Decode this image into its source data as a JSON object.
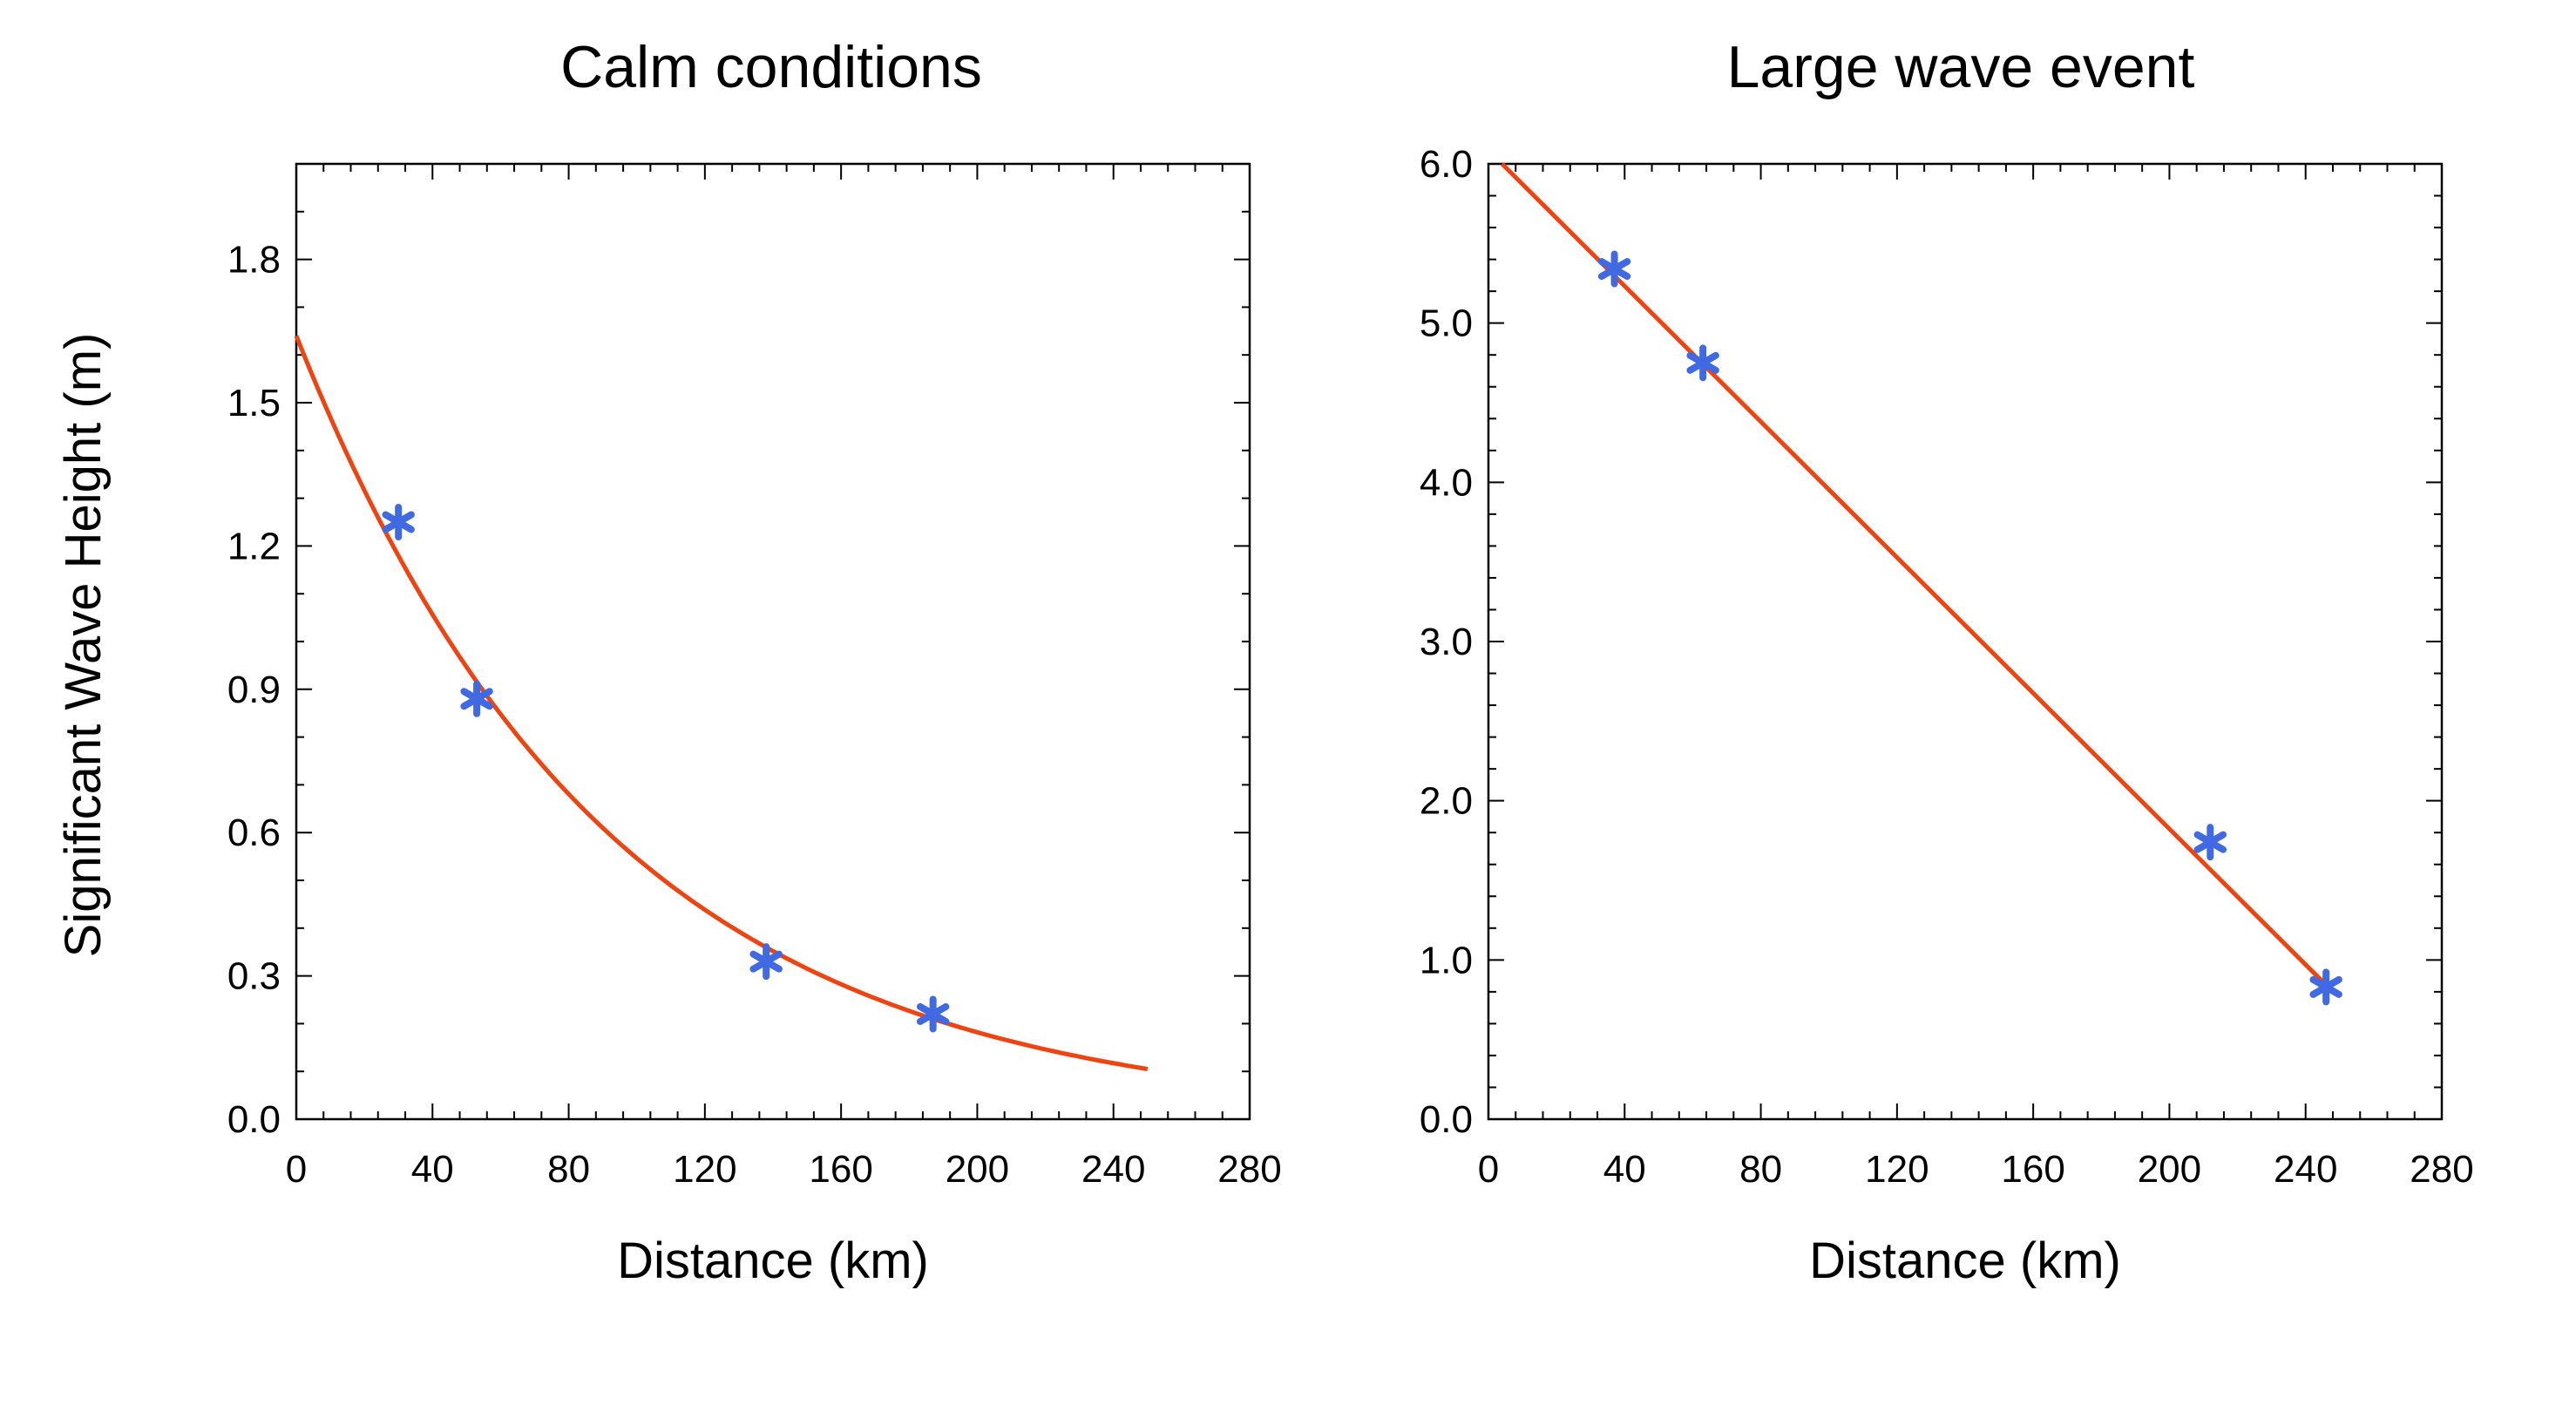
{
  "figure": {
    "colors": {
      "fit_line": "#ee4411",
      "markers": "#4169e1",
      "axes": "#000000"
    }
  },
  "chart_data": [
    {
      "type": "scatter",
      "title": "Calm conditions",
      "xlabel": "Distance (km)",
      "ylabel": "Significant Wave Height (m)",
      "xlim": [
        0,
        280
      ],
      "ylim": [
        0,
        2.0
      ],
      "xticks": [
        0,
        40,
        80,
        120,
        160,
        200,
        240,
        280
      ],
      "xtick_labels": [
        "0",
        "40",
        "80",
        "120",
        "160",
        "200",
        "240",
        "280"
      ],
      "yticks": [
        0.0,
        0.3,
        0.6,
        0.9,
        1.2,
        1.5,
        1.8
      ],
      "ytick_labels": [
        "0.0",
        "0.3",
        "0.6",
        "0.9",
        "1.2",
        "1.5",
        "1.8"
      ],
      "grid": false,
      "series": [
        {
          "kind": "points",
          "marker": "asterisk",
          "x": [
            30,
            53,
            138,
            187
          ],
          "y": [
            1.25,
            0.88,
            0.33,
            0.22
          ]
        },
        {
          "kind": "curve",
          "fit": "exponential",
          "x": [
            0,
            50,
            100,
            150,
            200,
            250
          ],
          "y": [
            1.64,
            0.95,
            0.55,
            0.32,
            0.18,
            0.105
          ]
        }
      ]
    },
    {
      "type": "scatter",
      "title": "Large wave event",
      "xlabel": "Distance (km)",
      "ylabel": "",
      "xlim": [
        0,
        280
      ],
      "ylim": [
        0,
        6.0
      ],
      "xticks": [
        0,
        40,
        80,
        120,
        160,
        200,
        240,
        280
      ],
      "xtick_labels": [
        "0",
        "40",
        "80",
        "120",
        "160",
        "200",
        "240",
        "280"
      ],
      "yticks": [
        0.0,
        1.0,
        2.0,
        3.0,
        4.0,
        5.0,
        6.0
      ],
      "ytick_labels": [
        "0.0",
        "1.0",
        "2.0",
        "3.0",
        "4.0",
        "5.0",
        "6.0"
      ],
      "grid": false,
      "series": [
        {
          "kind": "points",
          "marker": "asterisk",
          "x": [
            37,
            63,
            212,
            246
          ],
          "y": [
            5.34,
            4.75,
            1.74,
            0.83
          ]
        },
        {
          "kind": "curve",
          "fit": "linear",
          "x": [
            4,
            248
          ],
          "y": [
            6.0,
            0.8
          ]
        }
      ]
    }
  ]
}
